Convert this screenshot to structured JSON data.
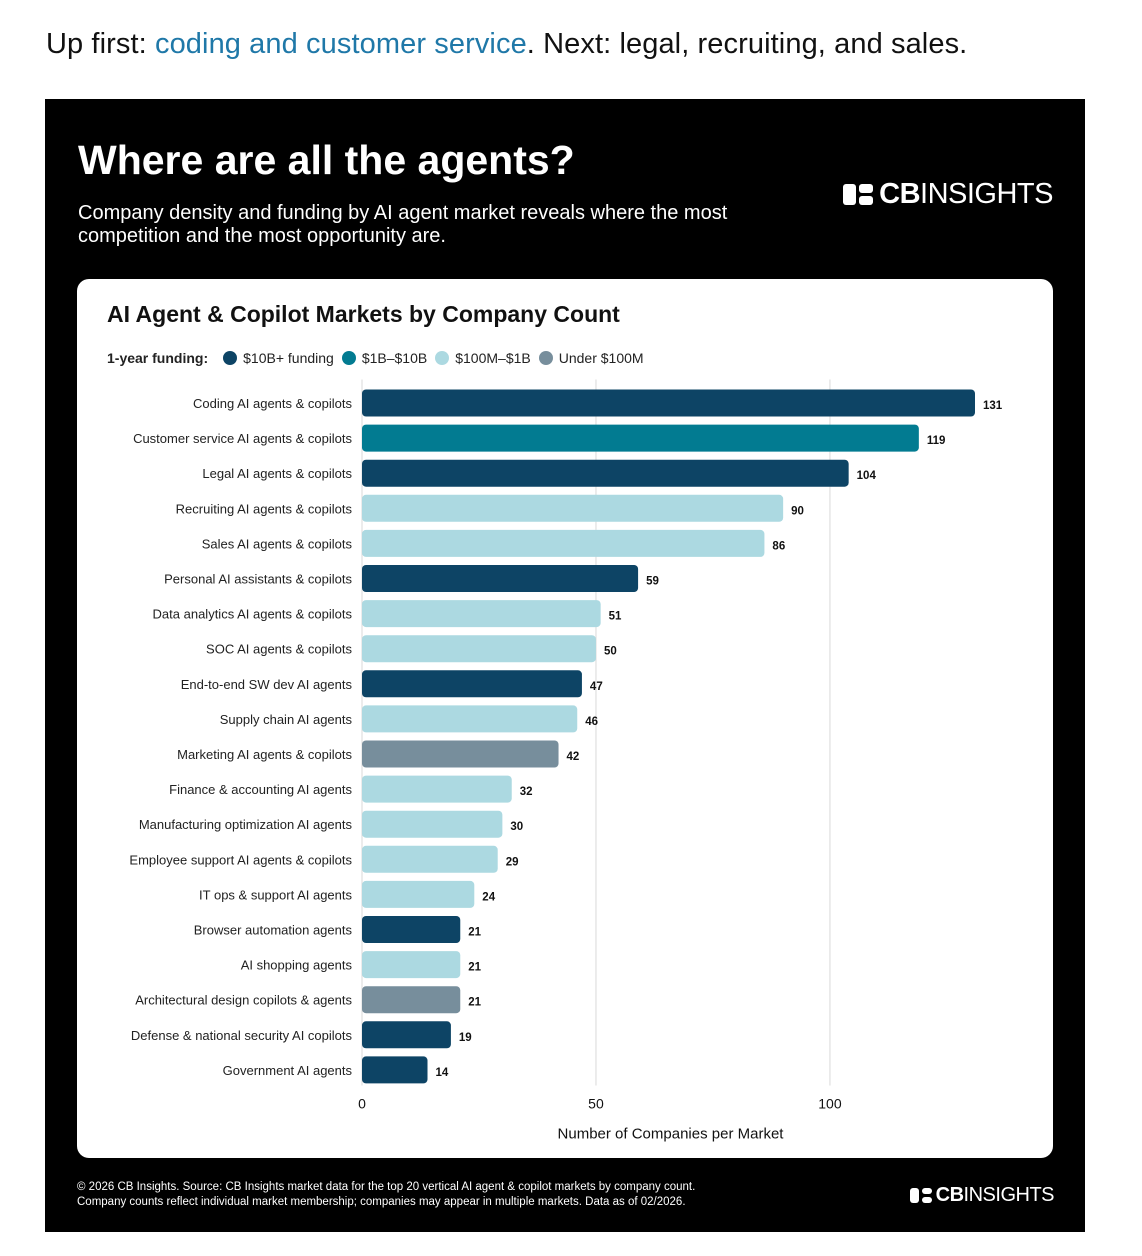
{
  "intro": {
    "prefix": "Up first: ",
    "link_text": "coding and customer service",
    "suffix": ". Next: legal, recruiting, and sales."
  },
  "panel": {
    "title": "Where are all the agents?",
    "subtitle": "Company density and funding by AI agent market reveals where the most competition and the most opportunity are.",
    "brand_bold": "CB",
    "brand_rest": "INSIGHTS"
  },
  "legend": {
    "label": "1-year funding:",
    "items": [
      {
        "label": "$10B+ funding",
        "color": "#0d4465"
      },
      {
        "label": "$1B–$10B",
        "color": "#027b91"
      },
      {
        "label": "$100M–$1B",
        "color": "#acd9e1"
      },
      {
        "label": "Under $100M",
        "color": "#778e9c"
      }
    ]
  },
  "chart_data": {
    "type": "bar",
    "orientation": "horizontal",
    "title": "AI Agent & Copilot Markets by Company Count",
    "xlabel": "Number of Companies per Market",
    "ylabel": "",
    "xlim": [
      0,
      131
    ],
    "xticks": [
      0,
      50,
      100
    ],
    "grid": true,
    "legend_placement": "top-left",
    "categories": [
      "Coding AI agents & copilots",
      "Customer service AI agents & copilots",
      "Legal AI agents & copilots",
      "Recruiting AI agents & copilots",
      "Sales AI agents & copilots",
      "Personal AI assistants & copilots",
      "Data analytics AI agents & copilots",
      "SOC AI agents & copilots",
      "End-to-end SW dev AI agents",
      "Supply chain AI agents",
      "Marketing AI agents & copilots",
      "Finance & accounting AI agents",
      "Manufacturing optimization AI agents",
      "Employee support AI agents & copilots",
      "IT ops & support AI agents",
      "Browser automation agents",
      "AI shopping agents",
      "Architectural design copilots & agents",
      "Defense & national security AI copilots",
      "Government AI agents"
    ],
    "values": [
      131,
      119,
      104,
      90,
      86,
      59,
      51,
      50,
      47,
      46,
      42,
      32,
      30,
      29,
      24,
      21,
      21,
      21,
      19,
      14
    ],
    "funding_tier": [
      "$10B+ funding",
      "$1B–$10B",
      "$10B+ funding",
      "$100M–$1B",
      "$100M–$1B",
      "$10B+ funding",
      "$100M–$1B",
      "$100M–$1B",
      "$10B+ funding",
      "$100M–$1B",
      "Under $100M",
      "$100M–$1B",
      "$100M–$1B",
      "$100M–$1B",
      "$100M–$1B",
      "$10B+ funding",
      "$100M–$1B",
      "Under $100M",
      "$10B+ funding",
      "$10B+ funding"
    ]
  },
  "footer": {
    "line1": "© 2026 CB Insights. Source: CB Insights market data for the top 20 vertical AI agent & copilot markets by company count.",
    "line2": "Company counts reflect individual market membership; companies may appear in multiple markets. Data as of 02/2026."
  }
}
